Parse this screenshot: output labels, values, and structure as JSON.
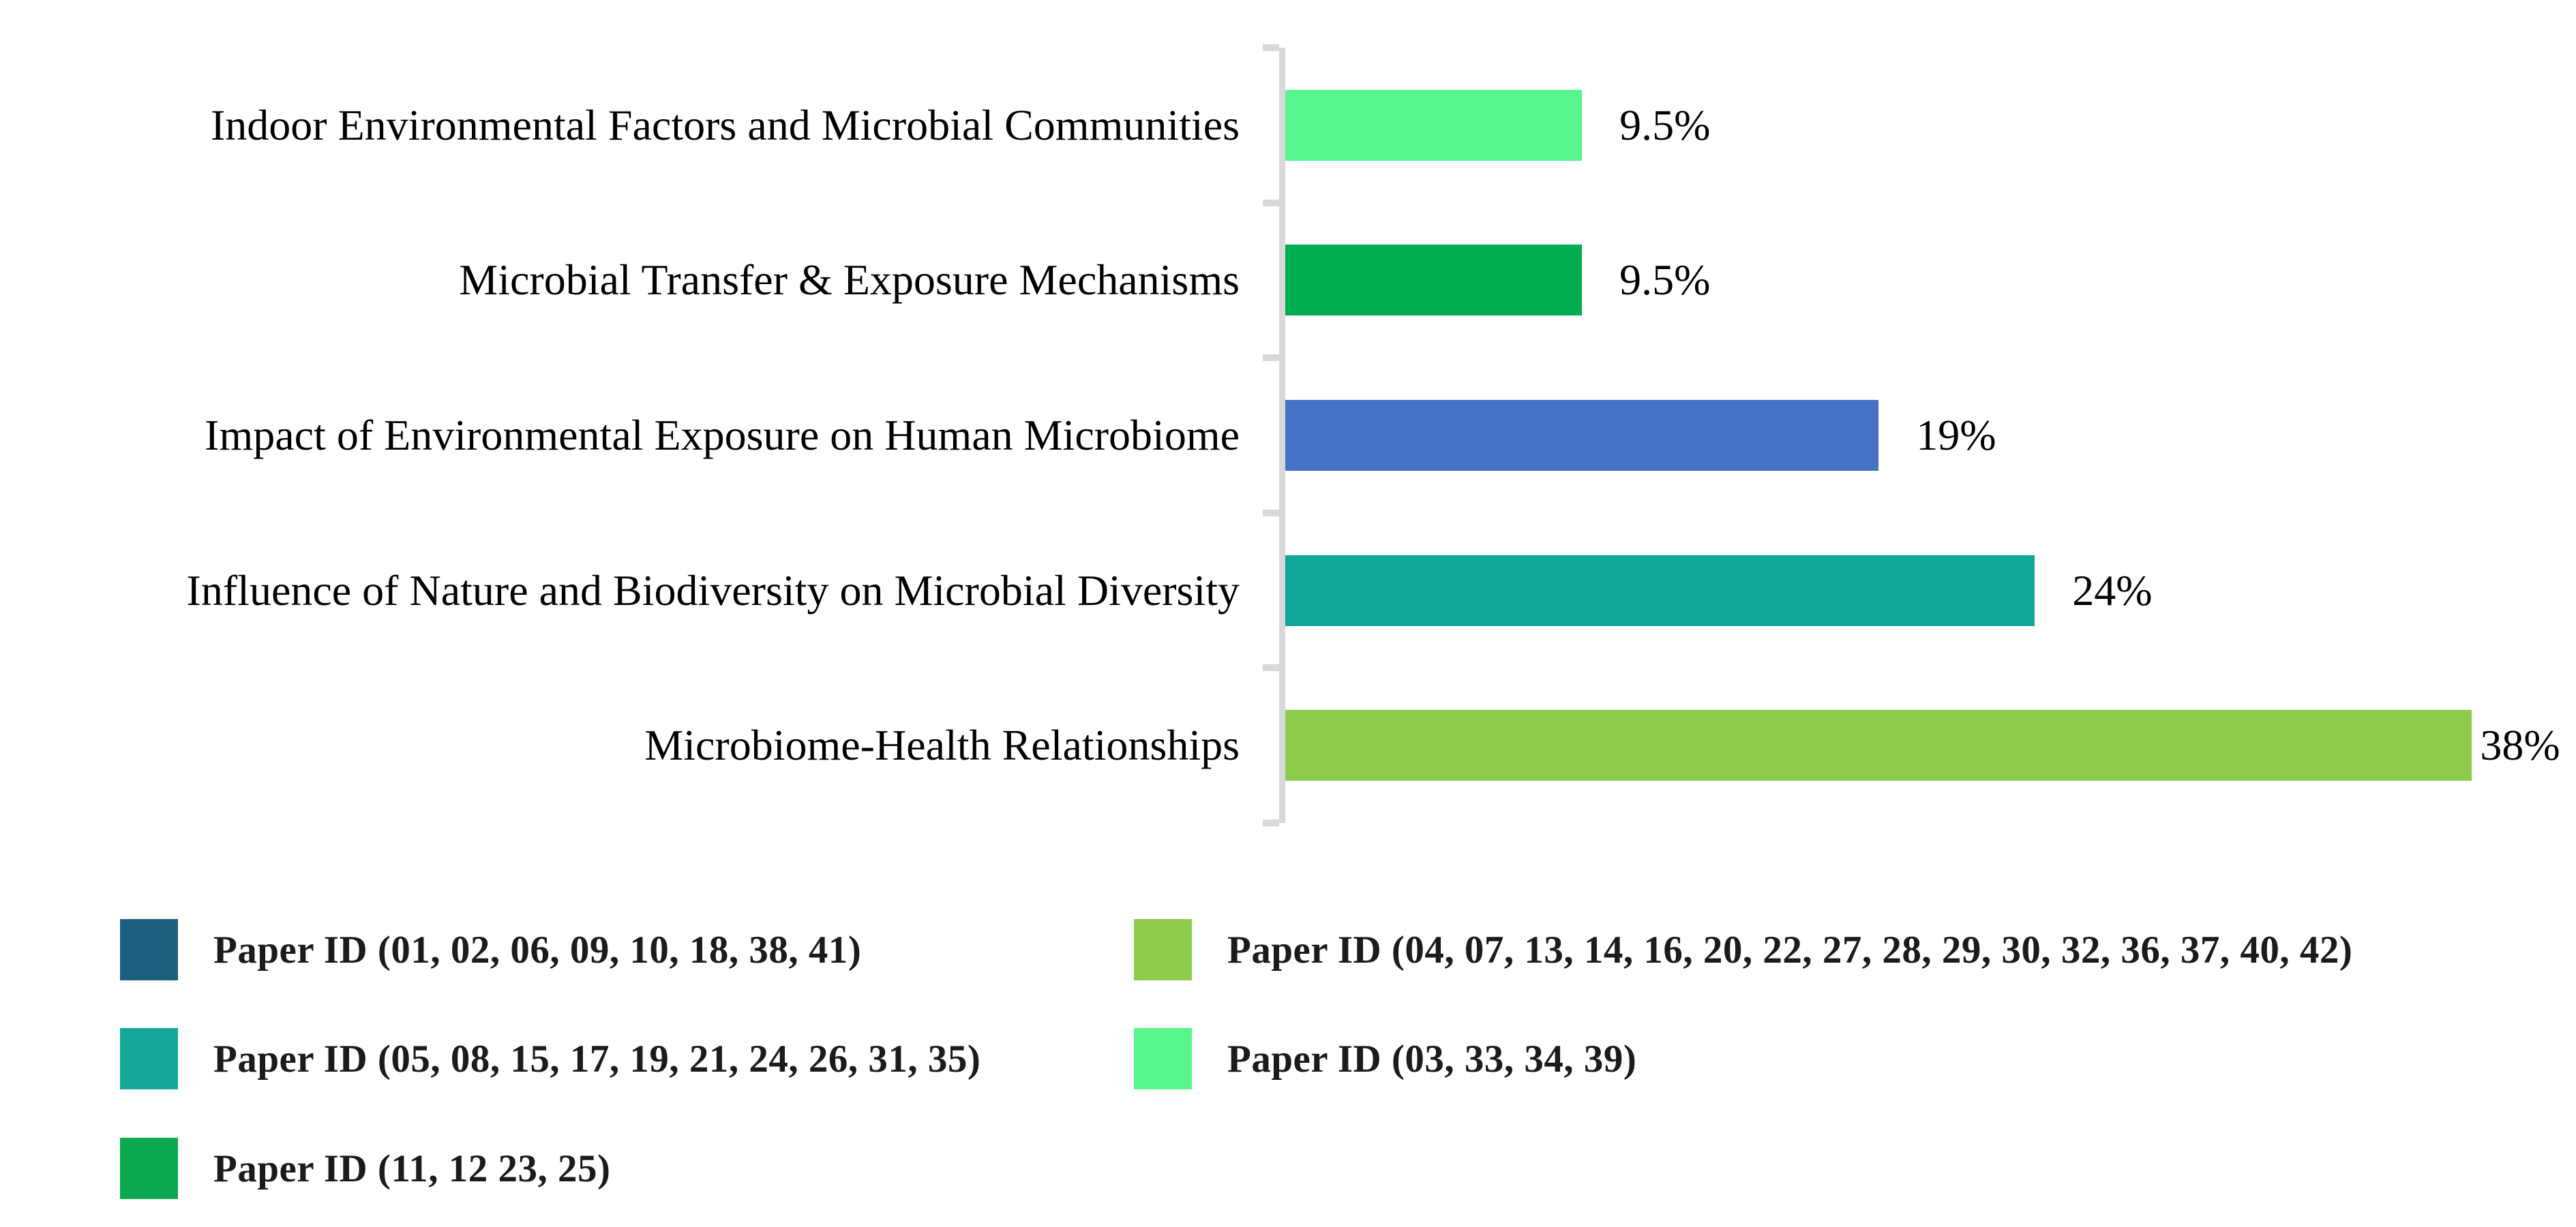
{
  "figure": {
    "background_color": "#FFFFFF",
    "axis_color": "#D9D9D9",
    "text_color": "#000000"
  },
  "chart_data": {
    "type": "bar",
    "orientation": "horizontal",
    "title": "",
    "xlabel": "",
    "ylabel": "",
    "xlim": [
      0,
      38
    ],
    "grid": false,
    "legend_position": "bottom",
    "categories": [
      "Indoor Environmental Factors and Microbial Communities",
      "Microbial Transfer & Exposure Mechanisms",
      "Impact of Environmental Exposure on Human Microbiome",
      "Influence of Nature and Biodiversity on Microbial Diversity",
      "Microbiome-Health Relationships"
    ],
    "values": [
      9.5,
      9.5,
      19,
      24,
      38
    ],
    "value_labels": [
      "9.5%",
      "9.5%",
      "19%",
      "24%",
      "38%"
    ],
    "bar_colors": [
      "#57F68E",
      "#00AC50",
      "#4472C4",
      "#0FA79A",
      "#8DCB4C"
    ]
  },
  "legend": {
    "items": [
      {
        "label": "Paper ID (01, 02, 06, 09, 10, 18, 38, 41)",
        "color": "#1F5F7E",
        "column": 0,
        "row": 0
      },
      {
        "label": "Paper ID (04, 07, 13, 14, 16, 20, 22, 27, 28, 29, 30, 32, 36, 37, 40, 42)",
        "color": "#8DCB4C",
        "column": 1,
        "row": 0
      },
      {
        "label": "Paper ID (05, 08, 15, 17, 19, 21, 24, 26, 31, 35)",
        "color": "#14A79A",
        "column": 0,
        "row": 1
      },
      {
        "label": "Paper ID (03, 33, 34, 39)",
        "color": "#57F68E",
        "column": 1,
        "row": 1
      },
      {
        "label": "Paper ID (11, 12 23, 25)",
        "color": "#0CA94F",
        "column": 0,
        "row": 2
      }
    ]
  }
}
